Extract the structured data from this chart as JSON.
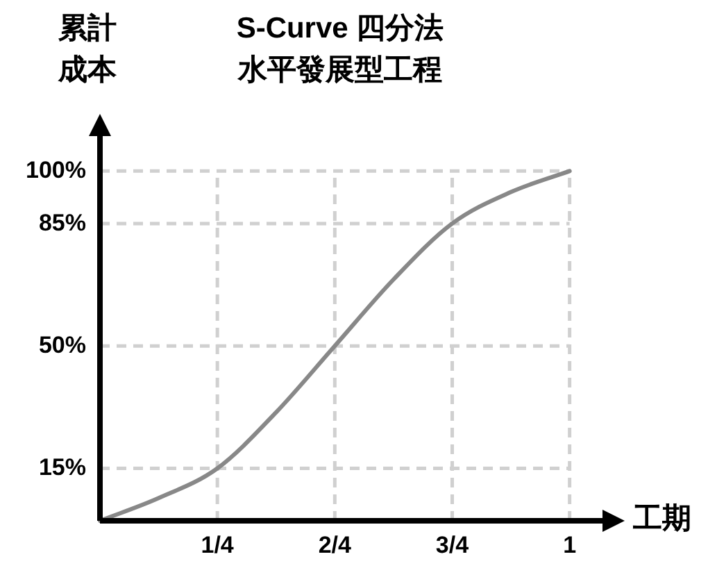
{
  "chart_data": {
    "type": "line",
    "title": "S-Curve 四分法",
    "subtitle": "水平發展型工程",
    "xlabel": "工期",
    "ylabel": "累計成本",
    "x": [
      0,
      0.125,
      0.25,
      0.375,
      0.5,
      0.625,
      0.75,
      0.875,
      1
    ],
    "series": [
      {
        "color": "#888888",
        "values": [
          0,
          6.5,
          15,
          31,
          50,
          69,
          85,
          94,
          100
        ]
      }
    ],
    "xlim": [
      0,
      1.07
    ],
    "ylim": [
      0,
      110
    ],
    "xticks": [
      {
        "value": 0.25,
        "label": "1/4"
      },
      {
        "value": 0.5,
        "label": "2/4"
      },
      {
        "value": 0.75,
        "label": "3/4"
      },
      {
        "value": 1,
        "label": "1"
      }
    ],
    "yticks": [
      {
        "value": 15,
        "label": "15%"
      },
      {
        "value": 50,
        "label": "50%"
      },
      {
        "value": 85,
        "label": "85%"
      },
      {
        "value": 100,
        "label": "100%"
      }
    ],
    "grid": true,
    "marker": "none",
    "line_style": "solid"
  }
}
